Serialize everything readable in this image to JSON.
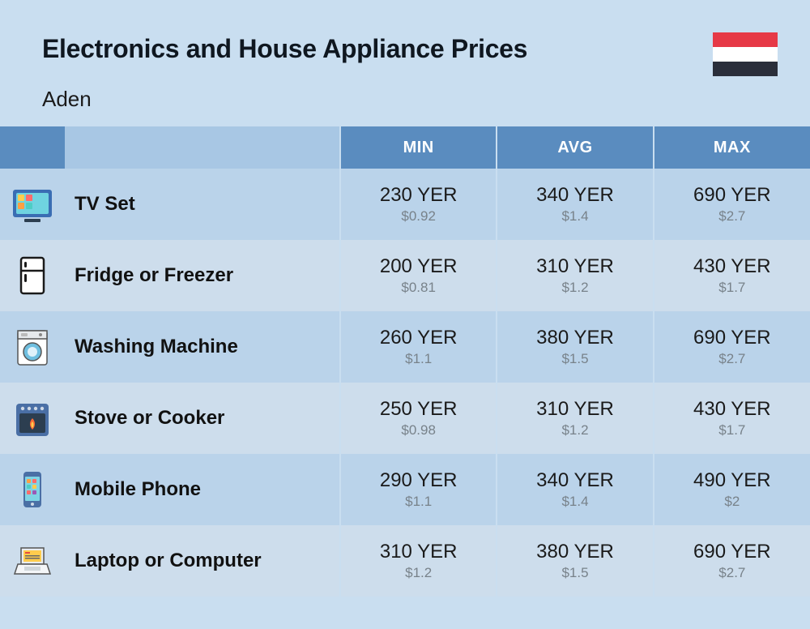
{
  "header": {
    "title": "Electronics and House Appliance Prices",
    "subtitle": "Aden",
    "flag_colors": [
      "#e63946",
      "#ffffff",
      "#2a2e3a"
    ]
  },
  "table": {
    "columns": [
      "MIN",
      "AVG",
      "MAX"
    ],
    "column_header_bg": "#5a8cbf",
    "column_header_fg": "#ffffff",
    "row_even_bg": "#bad3ea",
    "row_odd_bg": "#cdddec",
    "body_bg": "#c9def0",
    "currency_primary": "YER",
    "currency_secondary_prefix": "$",
    "rows": [
      {
        "icon": "tv",
        "name": "TV Set",
        "min": {
          "yer": "230 YER",
          "usd": "$0.92"
        },
        "avg": {
          "yer": "340 YER",
          "usd": "$1.4"
        },
        "max": {
          "yer": "690 YER",
          "usd": "$2.7"
        }
      },
      {
        "icon": "fridge",
        "name": "Fridge or Freezer",
        "min": {
          "yer": "200 YER",
          "usd": "$0.81"
        },
        "avg": {
          "yer": "310 YER",
          "usd": "$1.2"
        },
        "max": {
          "yer": "430 YER",
          "usd": "$1.7"
        }
      },
      {
        "icon": "washer",
        "name": "Washing Machine",
        "min": {
          "yer": "260 YER",
          "usd": "$1.1"
        },
        "avg": {
          "yer": "380 YER",
          "usd": "$1.5"
        },
        "max": {
          "yer": "690 YER",
          "usd": "$2.7"
        }
      },
      {
        "icon": "stove",
        "name": "Stove or Cooker",
        "min": {
          "yer": "250 YER",
          "usd": "$0.98"
        },
        "avg": {
          "yer": "310 YER",
          "usd": "$1.2"
        },
        "max": {
          "yer": "430 YER",
          "usd": "$1.7"
        }
      },
      {
        "icon": "phone",
        "name": "Mobile Phone",
        "min": {
          "yer": "290 YER",
          "usd": "$1.1"
        },
        "avg": {
          "yer": "340 YER",
          "usd": "$1.4"
        },
        "max": {
          "yer": "490 YER",
          "usd": "$2"
        }
      },
      {
        "icon": "laptop",
        "name": "Laptop or Computer",
        "min": {
          "yer": "310 YER",
          "usd": "$1.2"
        },
        "avg": {
          "yer": "380 YER",
          "usd": "$1.5"
        },
        "max": {
          "yer": "690 YER",
          "usd": "$2.7"
        }
      }
    ]
  },
  "typography": {
    "title_fontsize": 32,
    "subtitle_fontsize": 26,
    "header_fontsize": 20,
    "row_name_fontsize": 24,
    "value_main_fontsize": 24,
    "value_sub_fontsize": 17,
    "value_sub_color": "#78828a"
  }
}
